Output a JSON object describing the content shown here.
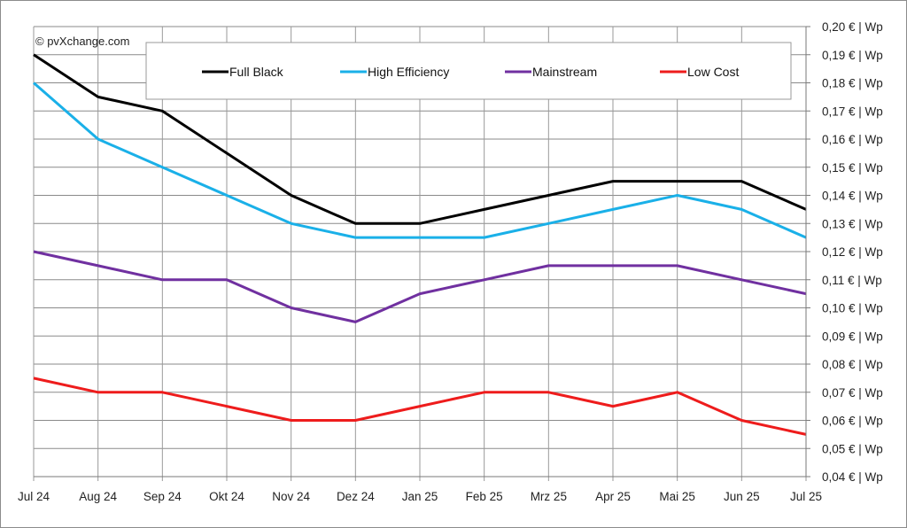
{
  "chart_data": {
    "type": "line",
    "title": "",
    "xlabel": "",
    "ylabel": "",
    "annotation": "© pvXchange.com",
    "categories": [
      "Jul 24",
      "Aug 24",
      "Sep 24",
      "Okt 24",
      "Nov 24",
      "Dez 24",
      "Jan 25",
      "Feb 25",
      "Mrz 25",
      "Apr 25",
      "Mai 25",
      "Jun 25",
      "Jul 25"
    ],
    "ylim": [
      0.04,
      0.2
    ],
    "y_ticks": [
      0.2,
      0.19,
      0.18,
      0.17,
      0.16,
      0.15,
      0.14,
      0.13,
      0.12,
      0.11,
      0.1,
      0.09,
      0.08,
      0.07,
      0.06,
      0.05,
      0.04
    ],
    "y_tick_labels": [
      "0,20 € | Wp",
      "0,19 € | Wp",
      "0,18 € | Wp",
      "0,17 € | Wp",
      "0,16 € | Wp",
      "0,15 € | Wp",
      "0,14 € | Wp",
      "0,13 € | Wp",
      "0,12 € | Wp",
      "0,11 € | Wp",
      "0,10 € | Wp",
      "0,09 € | Wp",
      "0,08 € | Wp",
      "0,07 € | Wp",
      "0,06 € | Wp",
      "0,05 € | Wp",
      "0,04 € | Wp"
    ],
    "y_axis_position": "right",
    "grid": true,
    "legend_position": "top",
    "series": [
      {
        "name": "Full Black",
        "color": "#000000",
        "values": [
          0.19,
          0.175,
          0.17,
          0.155,
          0.14,
          0.13,
          0.13,
          0.135,
          0.14,
          0.145,
          0.145,
          0.145,
          0.135
        ]
      },
      {
        "name": "High Efficiency",
        "color": "#1ab0e8",
        "values": [
          0.18,
          0.16,
          0.15,
          0.14,
          0.13,
          0.125,
          0.125,
          0.125,
          0.13,
          0.135,
          0.14,
          0.135,
          0.125
        ]
      },
      {
        "name": "Mainstream",
        "color": "#7030a0",
        "values": [
          0.12,
          0.115,
          0.11,
          0.11,
          0.1,
          0.095,
          0.105,
          0.11,
          0.115,
          0.115,
          0.115,
          0.11,
          0.105
        ]
      },
      {
        "name": "Low Cost",
        "color": "#ee1c1c",
        "values": [
          0.075,
          0.07,
          0.07,
          0.065,
          0.06,
          0.06,
          0.065,
          0.07,
          0.07,
          0.065,
          0.07,
          0.06,
          0.055
        ]
      }
    ]
  }
}
